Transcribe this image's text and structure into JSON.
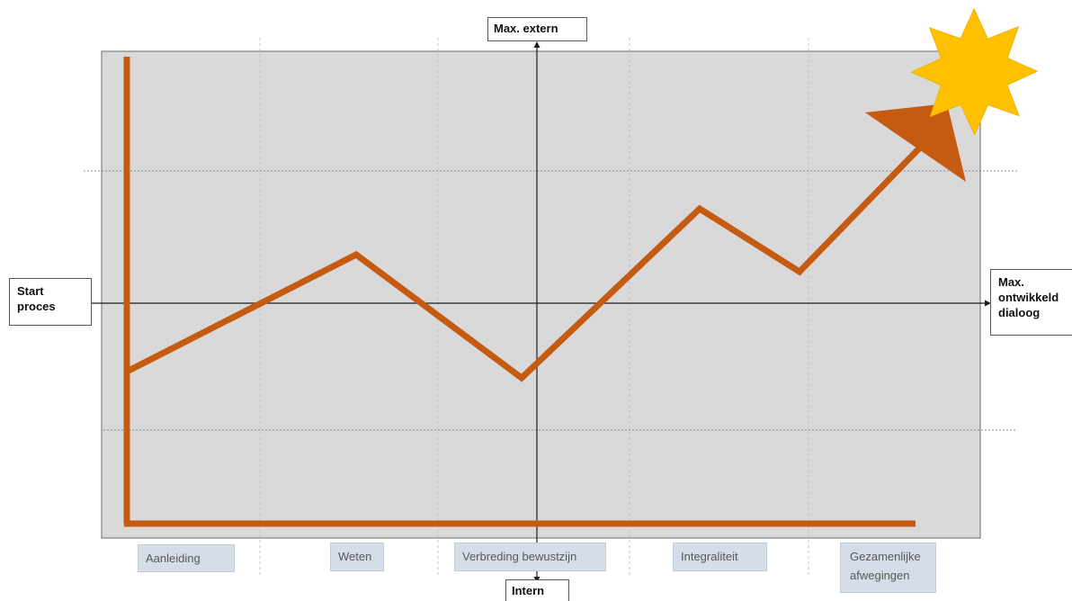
{
  "axes": {
    "top_label": "Max. extern",
    "bottom_label": "Intern",
    "left_label": "Start\nproces",
    "right_label": "Max.\nontwikkeld\ndialoog"
  },
  "phases": [
    {
      "label": "Aanleiding"
    },
    {
      "label": "Weten"
    },
    {
      "label": "Verbreding bewustzijn"
    },
    {
      "label": "Integraliteit"
    },
    {
      "label": "Gezamenlijke\nafwegingen"
    }
  ],
  "icons": {
    "sun": "sun-burst-icon",
    "arrowhead": "arrow-head-icon"
  },
  "colors": {
    "panel_fill": "#d9d9d9",
    "line": "#c55a11",
    "sun": "#ffc000",
    "axis": "#1f1f1f",
    "phase_box": "#d4dde8",
    "grid": "#8c96a8"
  }
}
